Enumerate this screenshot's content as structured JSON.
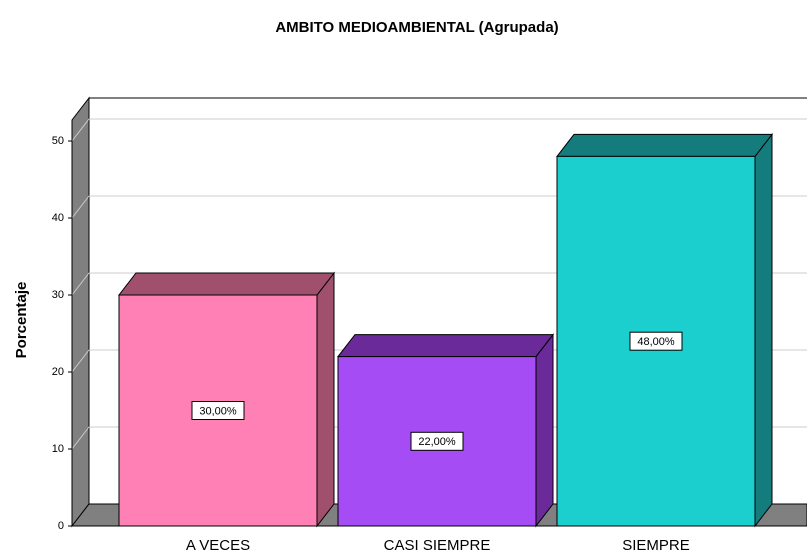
{
  "chart_data": {
    "type": "bar",
    "title": "AMBITO MEDIOAMBIENTAL (Agrupada)",
    "ylabel": "Porcentaje",
    "categories": [
      "A VECES",
      "CASI SIEMPRE",
      "SIEMPRE"
    ],
    "values": [
      30,
      22,
      48
    ],
    "value_labels": [
      "30,00%",
      "22,00%",
      "48,00%"
    ],
    "colors": [
      "#ff80b4",
      "#a64cf4",
      "#1ccfcf"
    ],
    "side_colors": [
      "#a0506c",
      "#6a2a9a",
      "#147c7c"
    ],
    "ylim": [
      0,
      53
    ],
    "yticks": [
      0,
      10,
      20,
      30,
      40,
      50
    ],
    "grid": true
  }
}
